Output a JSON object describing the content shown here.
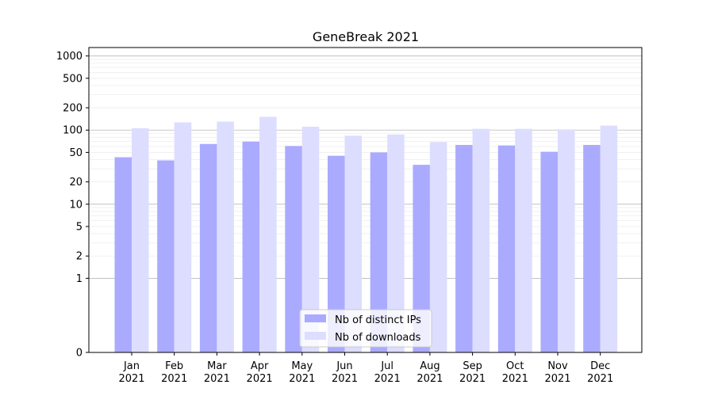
{
  "chart_data": {
    "type": "bar",
    "title": "GeneBreak 2021",
    "xlabel": "",
    "ylabel": "",
    "categories": [
      "Jan\n2021",
      "Feb\n2021",
      "Mar\n2021",
      "Apr\n2021",
      "May\n2021",
      "Jun\n2021",
      "Jul\n2021",
      "Aug\n2021",
      "Sep\n2021",
      "Oct\n2021",
      "Nov\n2021",
      "Dec\n2021"
    ],
    "series": [
      {
        "name": "Nb of distinct IPs",
        "color": "#aaaaff",
        "values": [
          43,
          39,
          65,
          70,
          61,
          45,
          50,
          34,
          63,
          62,
          51,
          63
        ]
      },
      {
        "name": "Nb of downloads",
        "color": "#ddddff",
        "values": [
          106,
          127,
          130,
          151,
          111,
          84,
          87,
          69,
          104,
          104,
          102,
          115
        ]
      }
    ],
    "yscale": "symlog",
    "ylim": [
      0,
      1300
    ],
    "yticks": [
      0,
      1,
      2,
      5,
      10,
      20,
      50,
      100,
      200,
      500,
      1000
    ],
    "grid": true,
    "legend_position": "bottom-center"
  }
}
